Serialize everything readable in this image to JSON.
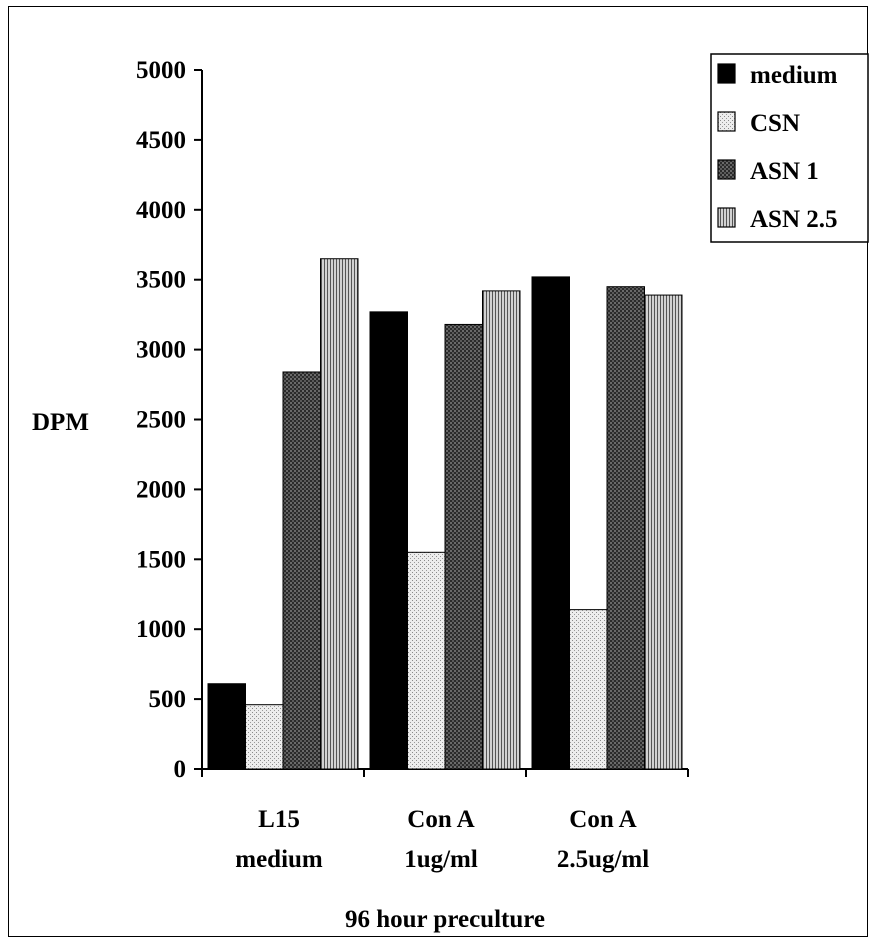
{
  "chart_data": {
    "type": "bar",
    "categories": [
      [
        "L15",
        "medium"
      ],
      [
        "Con A",
        "1ug/ml"
      ],
      [
        "Con A",
        "2.5ug/ml"
      ]
    ],
    "series": [
      {
        "name": "medium",
        "values": [
          610,
          3270,
          3520
        ]
      },
      {
        "name": "CSN",
        "values": [
          460,
          1550,
          1140
        ]
      },
      {
        "name": "ASN 1",
        "values": [
          2840,
          3180,
          3450
        ]
      },
      {
        "name": "ASN 2.5",
        "values": [
          3650,
          3420,
          3390
        ]
      }
    ],
    "ylabel": "DPM",
    "xlabel": "96 hour preculture",
    "ylim": [
      0,
      5000
    ],
    "yticks": [
      0,
      500,
      1000,
      1500,
      2000,
      2500,
      3000,
      3500,
      4000,
      4500,
      5000
    ],
    "legend_position": "top-right",
    "grid": false,
    "series_patterns": [
      "solid-black",
      "light-stipple",
      "dark-checker",
      "vertical-stripes"
    ]
  }
}
